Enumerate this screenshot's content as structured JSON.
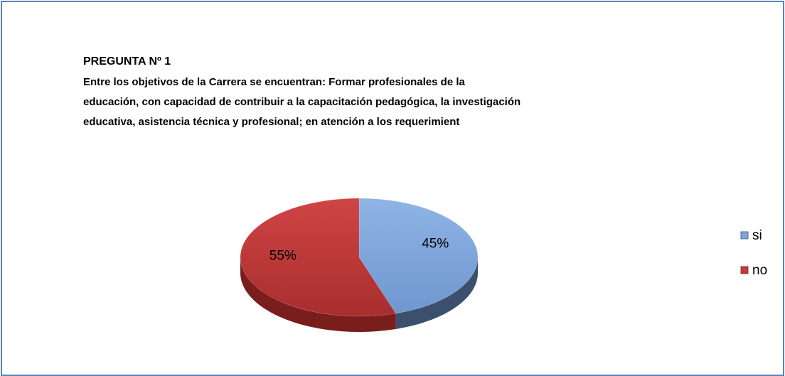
{
  "chart_data": {
    "type": "pie",
    "title": "PREGUNTA Nº 1",
    "subtitle": [
      "Entre los objetivos de  la Carrera se encuentran: Formar profesionales de la",
      "educación, con capacidad de contribuir a la capacitación pedagógica, la investigación",
      "educativa, asistencia técnica y profesional; en atención a los requerimient"
    ],
    "categories": [
      "si",
      "no"
    ],
    "values": [
      45,
      55
    ],
    "value_labels": [
      "45%",
      "55%"
    ],
    "colors": [
      "#7ea6dc",
      "#c23a3a"
    ],
    "legend": "right"
  }
}
